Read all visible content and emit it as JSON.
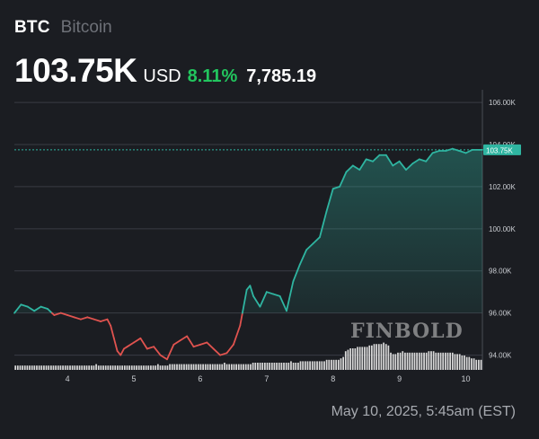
{
  "header": {
    "symbol": "BTC",
    "name": "Bitcoin",
    "price": "103.75K",
    "currency": "USD",
    "change_pct": "8.11%",
    "change_abs": "7,785.19"
  },
  "footer": {
    "timestamp": "May 10, 2025, 5:45am (EST)"
  },
  "watermark": "FINBOLD",
  "colors": {
    "background": "#1b1d22",
    "up": "#2fb5a1",
    "down": "#e0534f",
    "positive_text": "#22c55e",
    "grid": "#3a3d44",
    "volume": "#d9d9d9"
  },
  "chart_data": {
    "type": "line",
    "x_ticks": [
      "4",
      "5",
      "6",
      "7",
      "8",
      "9",
      "10"
    ],
    "y_ticks": [
      "94.00K",
      "96.00K",
      "98.00K",
      "100.00K",
      "102.00K",
      "104.00K",
      "106.00K"
    ],
    "ylim": [
      93300,
      106600
    ],
    "xlim": [
      3.2,
      10.25
    ],
    "baseline": 96000,
    "last_price_label": "103.75K",
    "last_price": 103750,
    "grid": "horizontal",
    "series": [
      {
        "x": [
          3.2,
          3.3,
          3.4,
          3.5,
          3.6,
          3.7,
          3.8,
          3.9,
          4.0,
          4.1,
          4.2,
          4.3,
          4.4,
          4.5,
          4.6,
          4.65,
          4.7,
          4.75,
          4.8,
          4.85,
          4.9,
          5.0,
          5.1,
          5.2,
          5.3,
          5.4,
          5.5,
          5.6,
          5.7,
          5.8,
          5.9,
          6.0,
          6.1,
          6.2,
          6.3,
          6.4,
          6.5,
          6.6,
          6.7,
          6.75,
          6.8,
          6.9,
          7.0,
          7.1,
          7.2,
          7.3,
          7.4,
          7.5,
          7.6,
          7.7,
          7.8,
          7.9,
          8.0,
          8.1,
          8.2,
          8.3,
          8.4,
          8.5,
          8.6,
          8.7,
          8.8,
          8.9,
          9.0,
          9.1,
          9.2,
          9.3,
          9.4,
          9.5,
          9.6,
          9.7,
          9.8,
          9.9,
          10.0,
          10.1,
          10.2,
          10.25
        ],
        "values": [
          96000,
          96400,
          96300,
          96100,
          96300,
          96200,
          95900,
          96000,
          95900,
          95800,
          95700,
          95800,
          95700,
          95600,
          95700,
          95400,
          94800,
          94200,
          94000,
          94300,
          94400,
          94600,
          94800,
          94300,
          94400,
          94000,
          93800,
          94500,
          94700,
          94900,
          94400,
          94500,
          94600,
          94300,
          94000,
          94100,
          94500,
          95400,
          97100,
          97300,
          96800,
          96300,
          97000,
          96900,
          96800,
          96100,
          97500,
          98300,
          99000,
          99300,
          99600,
          100800,
          101900,
          102000,
          102700,
          103000,
          102800,
          103300,
          103200,
          103500,
          103500,
          103000,
          103200,
          102800,
          103100,
          103300,
          103200,
          103600,
          103700,
          103700,
          103800,
          103700,
          103600,
          103750,
          103750,
          103750
        ]
      }
    ],
    "volume": [
      3,
      3,
      3,
      3,
      3,
      3,
      3,
      3,
      3,
      3,
      3,
      3,
      3,
      3,
      3,
      3,
      3,
      3,
      3,
      3,
      3,
      3,
      3,
      3,
      3,
      3,
      3,
      3,
      3,
      3,
      3,
      3,
      3,
      3,
      4,
      3,
      3,
      3,
      3,
      3,
      3,
      3,
      3,
      3,
      3,
      3,
      3,
      3,
      3,
      3,
      3,
      3,
      3,
      3,
      3,
      3,
      3,
      3,
      3,
      3,
      4,
      3,
      3,
      3,
      3,
      4,
      4,
      4,
      4,
      4,
      4,
      4,
      4,
      4,
      4,
      4,
      4,
      4,
      4,
      4,
      4,
      4,
      4,
      4,
      4,
      4,
      4,
      4,
      5,
      4,
      4,
      4,
      4,
      4,
      4,
      4,
      4,
      4,
      4,
      4,
      5,
      5,
      5,
      5,
      5,
      5,
      5,
      5,
      5,
      5,
      5,
      5,
      5,
      5,
      5,
      5,
      6,
      5,
      5,
      5,
      6,
      6,
      6,
      6,
      6,
      6,
      6,
      6,
      6,
      6,
      6,
      7,
      7,
      7,
      7,
      7,
      7,
      8,
      9,
      13,
      14,
      15,
      15,
      15,
      16,
      16,
      16,
      16,
      16,
      17,
      17,
      18,
      18,
      18,
      18,
      19,
      18,
      17,
      12,
      11,
      11,
      12,
      12,
      13,
      12,
      12,
      12,
      12,
      12,
      12,
      12,
      12,
      12,
      12,
      13,
      13,
      13,
      12,
      12,
      12,
      12,
      12,
      12,
      12,
      12,
      11,
      11,
      11,
      10,
      10,
      9,
      9,
      8,
      8,
      7,
      7,
      7
    ]
  }
}
